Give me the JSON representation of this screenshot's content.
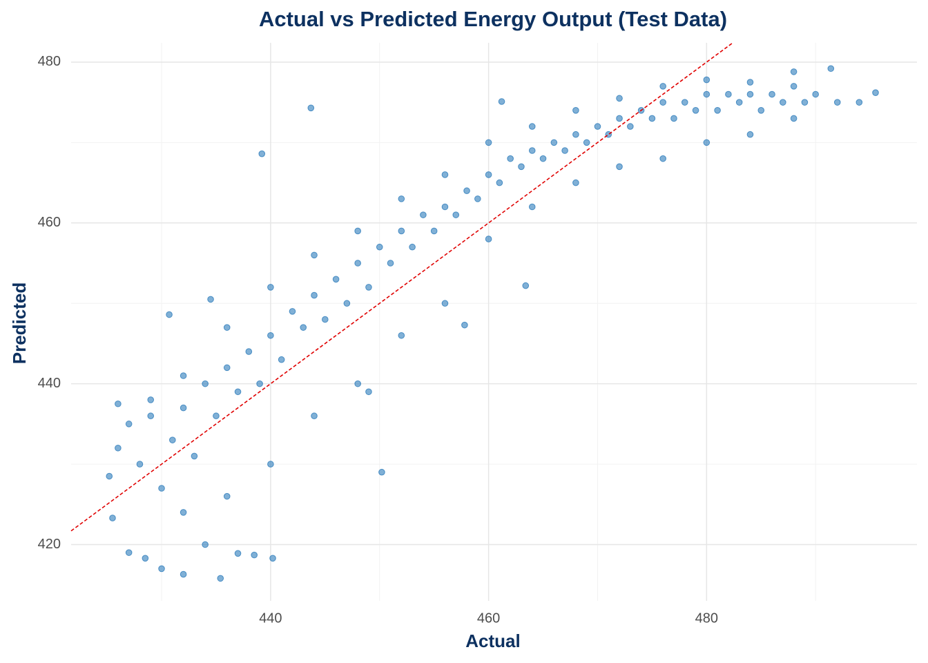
{
  "chart_data": {
    "type": "scatter",
    "title": "Actual vs Predicted Energy Output (Test Data)",
    "x_label": "Actual",
    "y_label": "Predicted",
    "color": "#2b7bba",
    "identity_line": true,
    "identity_line_color": "#e00000",
    "grid": true,
    "xlim": [
      421.7,
      499.3
    ],
    "ylim": [
      413.0,
      482.4
    ],
    "xticks": [
      440,
      460,
      480
    ],
    "yticks": [
      420,
      440,
      460,
      480
    ],
    "xminor": [
      430,
      450,
      470,
      490
    ],
    "yminor": [
      430,
      450,
      470
    ],
    "x": [
      425.2,
      426,
      427,
      428,
      429,
      430,
      431,
      432,
      433,
      434,
      435,
      436,
      437,
      438,
      439,
      440,
      441,
      442,
      443,
      444,
      445,
      446,
      447,
      448,
      449,
      450,
      451,
      452,
      453,
      454,
      455,
      456,
      457,
      458,
      459,
      460,
      461,
      462,
      463,
      464,
      465,
      466,
      467,
      468,
      469,
      470,
      471,
      472,
      473,
      474,
      475,
      476,
      477,
      478,
      479,
      480,
      481,
      482,
      483,
      484,
      485,
      486,
      487,
      488,
      489,
      490,
      492,
      494,
      495.5,
      425.5,
      427,
      428.5,
      430,
      432,
      434,
      435.4,
      437,
      438.5,
      440.2,
      432,
      436,
      440,
      444,
      448,
      452,
      456,
      460,
      464,
      468,
      472,
      476,
      480,
      484,
      488,
      426,
      429,
      432,
      436,
      440,
      444,
      448,
      452,
      456,
      460,
      464,
      468,
      472,
      476,
      480,
      484,
      488,
      443.7,
      439.2,
      430.7,
      434.5,
      450.2,
      463.4,
      461.2,
      491.4,
      457.8,
      449
    ],
    "y": [
      428.5,
      432,
      435,
      430,
      436,
      427,
      433,
      437,
      431,
      440,
      436,
      442,
      439,
      444,
      440,
      446,
      443,
      449,
      447,
      451,
      448,
      453,
      450,
      455,
      452,
      457,
      455,
      459,
      457,
      461,
      459,
      462,
      461,
      464,
      463,
      466,
      465,
      468,
      467,
      469,
      468,
      470,
      469,
      471,
      470,
      472,
      471,
      473,
      472,
      474,
      473,
      475,
      473,
      475,
      474,
      476,
      474,
      476,
      475,
      476,
      474,
      476,
      475,
      477,
      475,
      476,
      475,
      475,
      476.2,
      423.3,
      419,
      418.3,
      417,
      416.3,
      420,
      415.8,
      418.9,
      418.7,
      418.3,
      424,
      426,
      430,
      436,
      440,
      446,
      450,
      458,
      462,
      465,
      467,
      468,
      470,
      471,
      473,
      437.5,
      438,
      441,
      447,
      452,
      456,
      459,
      463,
      466,
      470,
      472,
      474,
      475.5,
      477,
      477.8,
      477.5,
      478.8,
      474.3,
      468.6,
      448.6,
      450.5,
      429,
      452.2,
      475.1,
      479.2,
      447.3,
      439
    ]
  }
}
